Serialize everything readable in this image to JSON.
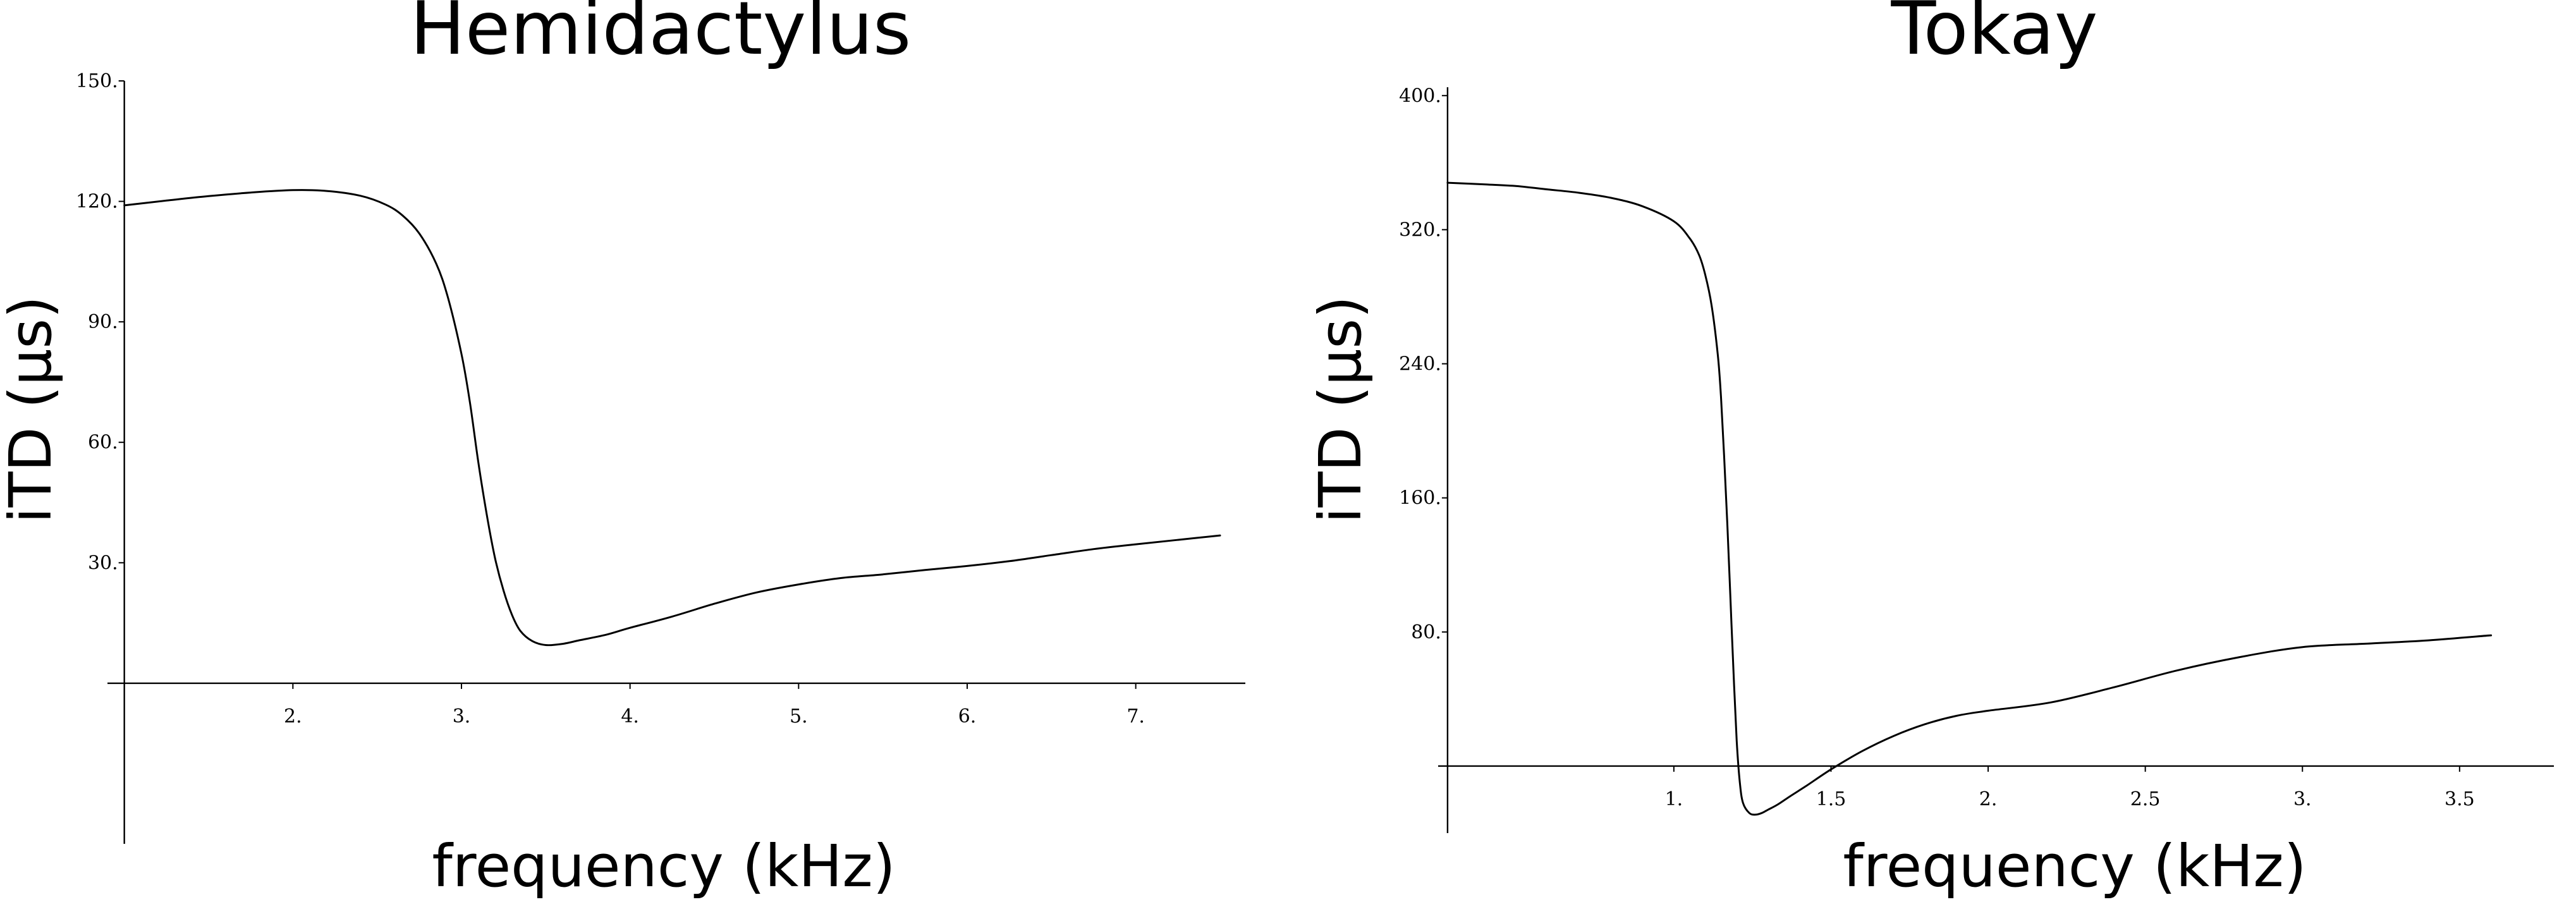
{
  "chart_data": [
    {
      "type": "line",
      "title": "Hemidactylus",
      "xlabel": "frequency (kHz)",
      "ylabel": "iTD (µs)",
      "xlim": [
        0.9,
        7.65
      ],
      "ylim": [
        -40,
        150
      ],
      "xticks": [
        2,
        3,
        4,
        5,
        6,
        7
      ],
      "xtick_labels": [
        "2.",
        "3.",
        "4.",
        "5.",
        "6.",
        "7."
      ],
      "yticks": [
        30,
        60,
        90,
        120,
        150
      ],
      "ytick_labels": [
        "30.",
        "60.",
        "90.",
        "120.",
        "150."
      ],
      "grid": false,
      "series": [
        {
          "x": [
            1.0,
            1.25,
            1.5,
            1.75,
            2.0,
            2.2,
            2.4,
            2.55,
            2.65,
            2.75,
            2.85,
            2.92,
            3.0,
            3.05,
            3.1,
            3.15,
            3.2,
            3.25,
            3.3,
            3.35,
            3.42,
            3.5,
            3.6,
            3.7,
            3.85,
            4.0,
            4.25,
            4.5,
            4.75,
            5.0,
            5.25,
            5.5,
            5.75,
            6.0,
            6.25,
            6.5,
            6.75,
            7.0,
            7.25,
            7.5
          ],
          "y": [
            119,
            120.2,
            121.3,
            122.2,
            122.8,
            122.6,
            121.4,
            119.2,
            116.5,
            112,
            104.5,
            96,
            82,
            70,
            55,
            42,
            31,
            23,
            17,
            13,
            10.5,
            9.5,
            9.8,
            10.7,
            12,
            13.8,
            16.6,
            19.8,
            22.6,
            24.6,
            26.2,
            27.1,
            28.2,
            29.2,
            30.4,
            31.9,
            33.4,
            34.6,
            35.7,
            36.8
          ]
        }
      ]
    },
    {
      "type": "line",
      "title": "Tokay",
      "xlabel": "frequency (kHz)",
      "ylabel": "iTD (µs)",
      "xlim": [
        0.25,
        3.8
      ],
      "ylim": [
        -40,
        405
      ],
      "xticks": [
        1,
        1.5,
        2,
        2.5,
        3,
        3.5
      ],
      "xtick_labels": [
        "1.",
        "1.5",
        "2.",
        "2.5",
        "3.",
        "3.5"
      ],
      "yticks": [
        80,
        160,
        240,
        320,
        400
      ],
      "ytick_labels": [
        "80.",
        "160.",
        "240.",
        "320.",
        "400."
      ],
      "grid": false,
      "series": [
        {
          "x": [
            0.28,
            0.4,
            0.5,
            0.6,
            0.7,
            0.8,
            0.9,
            1.0,
            1.05,
            1.08,
            1.1,
            1.12,
            1.14,
            1.15,
            1.16,
            1.17,
            1.18,
            1.19,
            1.2,
            1.21,
            1.22,
            1.24,
            1.26,
            1.28,
            1.3,
            1.33,
            1.37,
            1.42,
            1.5,
            1.6,
            1.7,
            1.8,
            1.9,
            2.0,
            2.2,
            2.4,
            2.6,
            2.8,
            3.0,
            3.2,
            3.4,
            3.6
          ],
          "y": [
            348,
            347,
            346,
            344,
            342,
            339,
            334,
            325,
            315,
            305,
            293,
            275,
            245,
            220,
            185,
            145,
            100,
            55,
            15,
            -10,
            -22,
            -28,
            -29,
            -28,
            -26,
            -23,
            -18,
            -12,
            -2,
            9,
            18,
            25,
            30,
            33,
            38,
            47,
            57,
            65,
            71,
            73,
            75,
            78
          ]
        }
      ]
    }
  ]
}
